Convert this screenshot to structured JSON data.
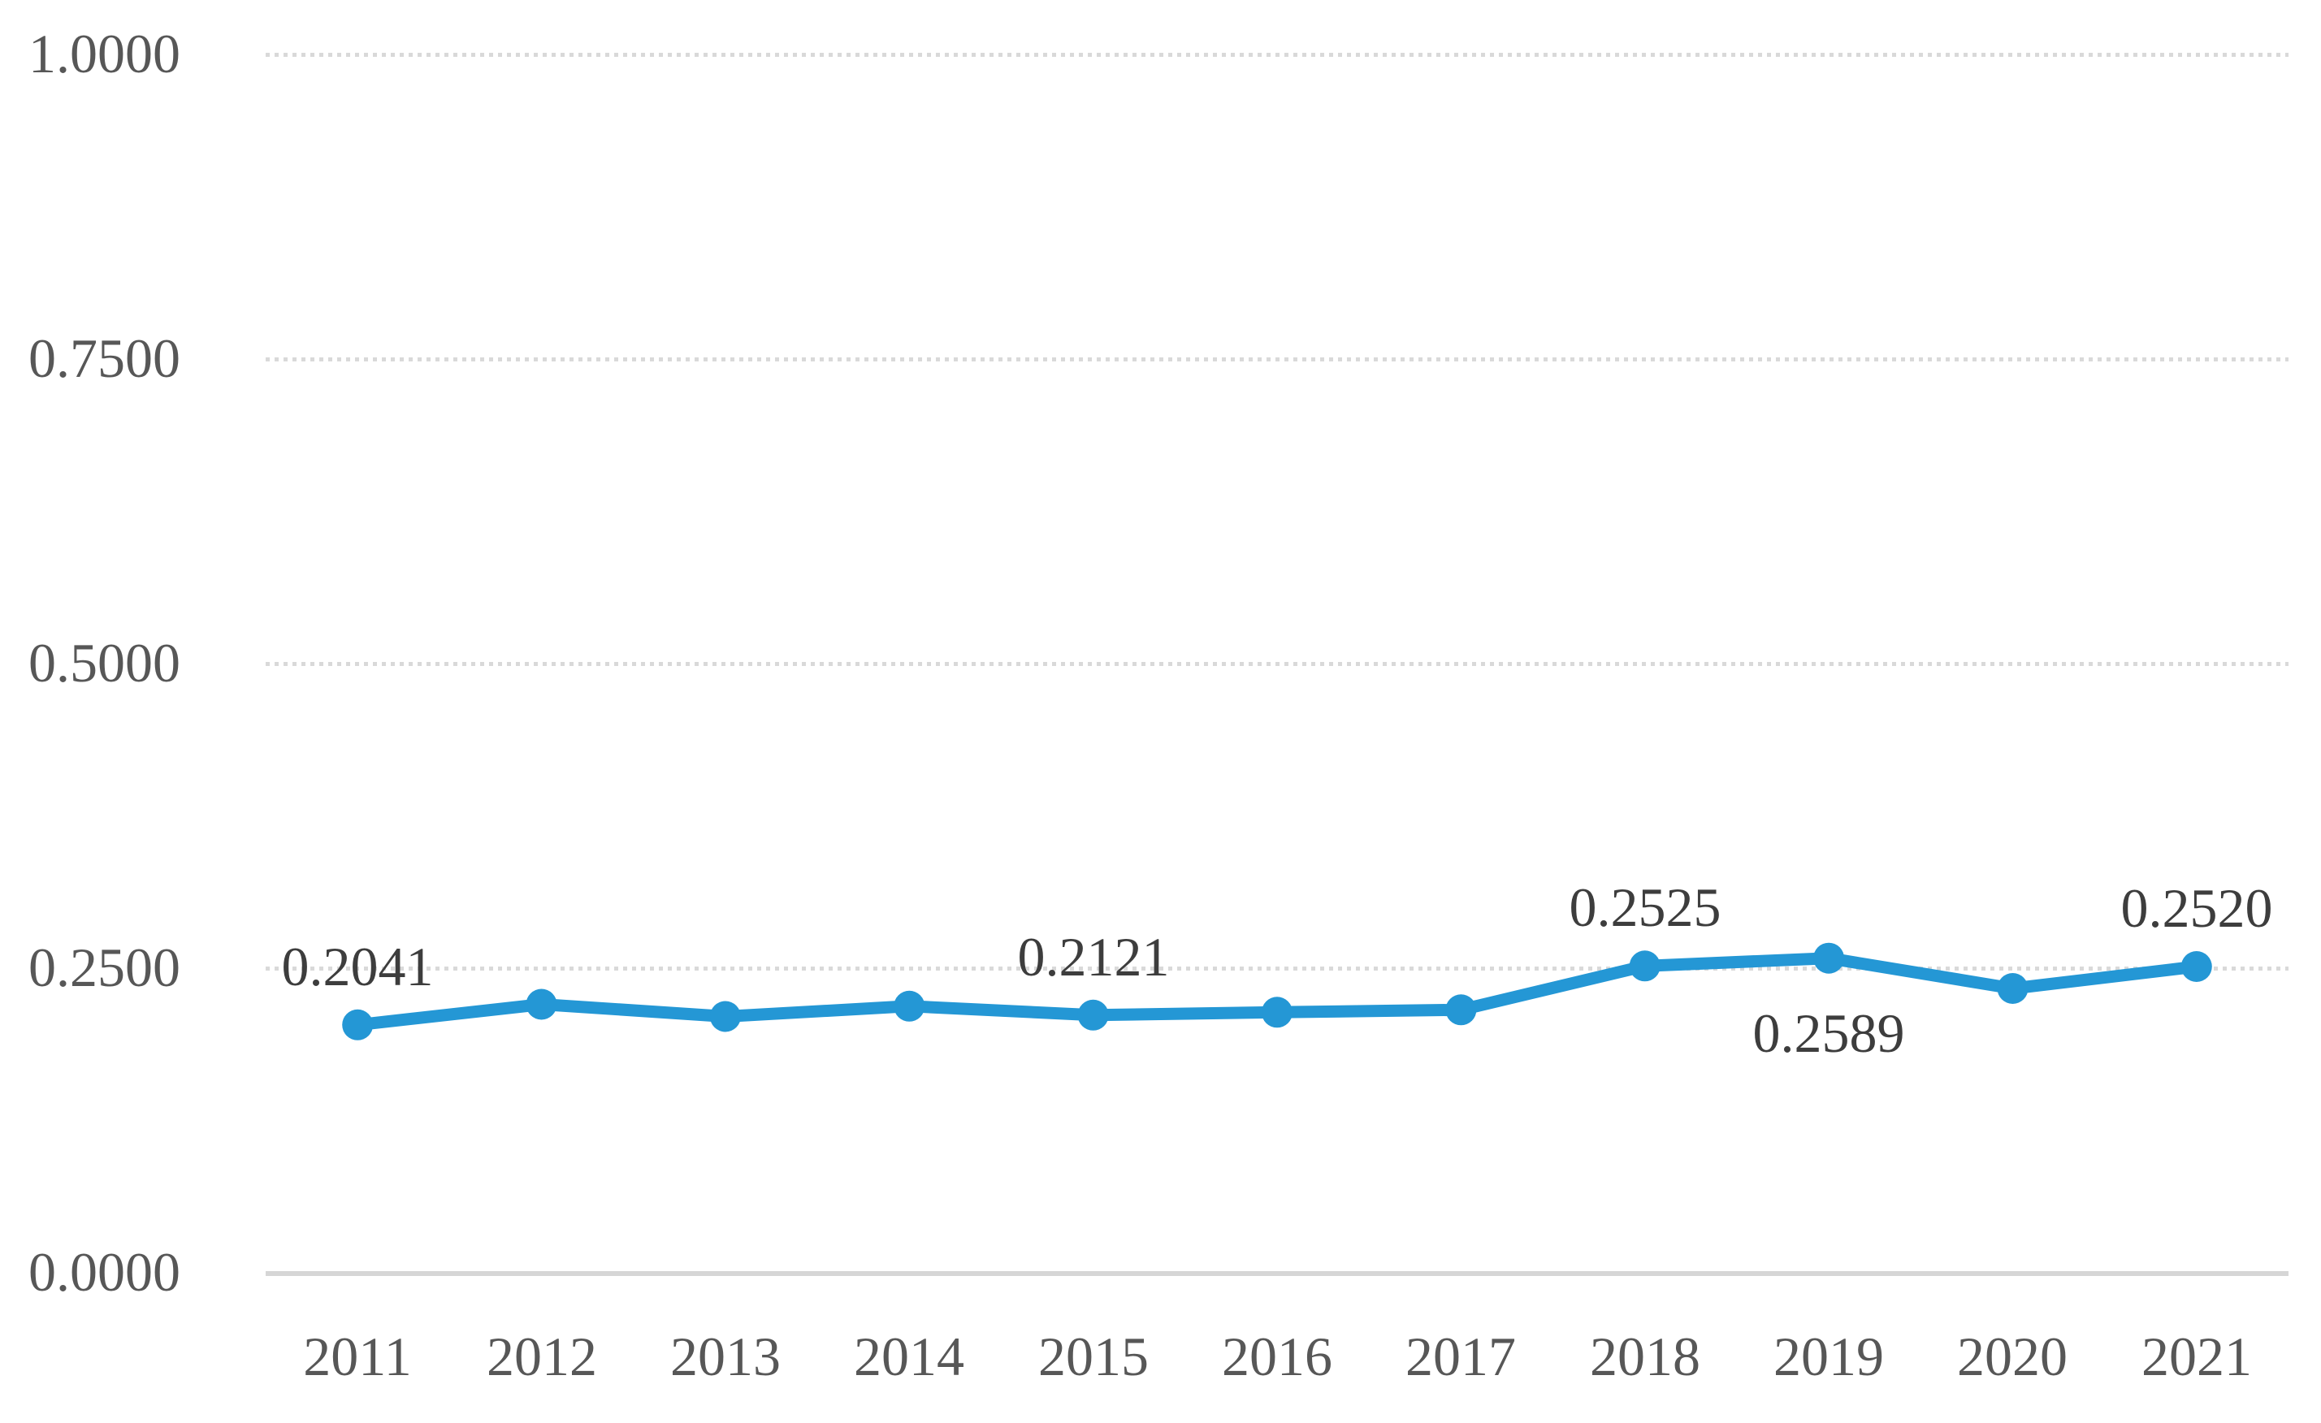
{
  "chart_data": {
    "type": "line",
    "title": "",
    "xlabel": "",
    "ylabel": "",
    "legend": "none",
    "grid": "horizontal-dotted",
    "ylim": [
      0,
      1
    ],
    "categories": [
      "2011",
      "2012",
      "2013",
      "2014",
      "2015",
      "2016",
      "2017",
      "2018",
      "2019",
      "2020",
      "2021"
    ],
    "series": [
      {
        "name": "",
        "values": [
          0.2041,
          0.221,
          0.211,
          0.2195,
          0.2121,
          0.2145,
          0.2165,
          0.2525,
          0.2589,
          0.234,
          0.252
        ]
      }
    ],
    "y_ticks": [
      "0.0000",
      "0.2500",
      "0.5000",
      "0.7500",
      "1.0000"
    ],
    "data_labels": [
      {
        "category": "2011",
        "text": "0.2041",
        "placement": "above"
      },
      {
        "category": "2015",
        "text": "0.2121",
        "placement": "above"
      },
      {
        "category": "2018",
        "text": "0.2525",
        "placement": "above"
      },
      {
        "category": "2019",
        "text": "0.2589",
        "placement": "below"
      },
      {
        "category": "2021",
        "text": "0.2520",
        "placement": "above"
      }
    ],
    "colors": {
      "line": "#2497D5",
      "marker": "#2497D5",
      "gridline": "#D9D9D9",
      "axis_line": "#D6D6D6",
      "tick_label": "#575757",
      "data_label": "#3D3D3D",
      "background": "#FFFFFF"
    }
  }
}
